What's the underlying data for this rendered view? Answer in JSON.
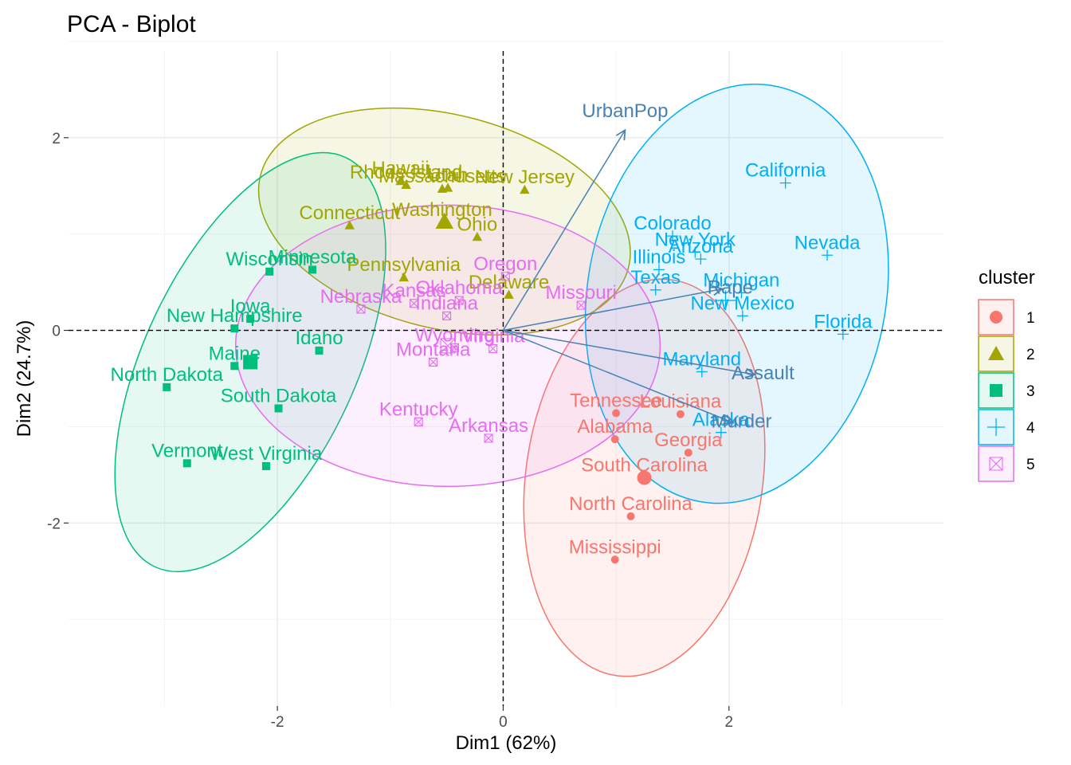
{
  "chart_data": {
    "type": "scatter",
    "title": "PCA - Biplot",
    "xlabel": "Dim1 (62%)",
    "ylabel": "Dim2 (24.7%)",
    "xlim": [
      -3.85,
      3.9
    ],
    "ylim": [
      -3.9,
      2.9
    ],
    "xticks": [
      -2,
      0,
      2
    ],
    "yticks": [
      -2,
      0,
      2
    ],
    "grid": true,
    "legend": {
      "title": "cluster",
      "position": "right"
    },
    "clusters": [
      {
        "id": "1",
        "color": "#F8766D",
        "shape": "circle",
        "centroid": [
          1.25,
          -1.53
        ],
        "ellipse": {
          "cx": 1.25,
          "cy": -1.53,
          "rx": 1.77,
          "ry": 1.23,
          "angle": 82
        },
        "points": [
          {
            "name": "Tennessee",
            "x": 1.0,
            "y": -0.86
          },
          {
            "name": "Louisiana",
            "x": 1.57,
            "y": -0.87
          },
          {
            "name": "Alabama",
            "x": 0.99,
            "y": -1.13
          },
          {
            "name": "Georgia",
            "x": 1.64,
            "y": -1.27
          },
          {
            "name": "South Carolina",
            "x": 1.25,
            "y": -1.53
          },
          {
            "name": "North Carolina",
            "x": 1.13,
            "y": -1.93
          },
          {
            "name": "Mississippi",
            "x": 0.99,
            "y": -2.38
          }
        ]
      },
      {
        "id": "2",
        "color": "#A3A500",
        "shape": "triangle",
        "centroid": [
          -0.52,
          1.13
        ],
        "ellipse": {
          "cx": -0.52,
          "cy": 1.13,
          "rx": 1.68,
          "ry": 1.11,
          "angle": -14
        },
        "points": [
          {
            "name": "Hawaii",
            "x": -0.91,
            "y": 1.55
          },
          {
            "name": "Rhode Island",
            "x": -0.86,
            "y": 1.51
          },
          {
            "name": "Massachusetts",
            "x": -0.54,
            "y": 1.47
          },
          {
            "name": "Utah",
            "x": -0.49,
            "y": 1.48
          },
          {
            "name": "New Jersey",
            "x": 0.19,
            "y": 1.46
          },
          {
            "name": "Connecticut",
            "x": -1.36,
            "y": 1.09
          },
          {
            "name": "Washington",
            "x": -0.54,
            "y": 1.12
          },
          {
            "name": "Ohio",
            "x": -0.23,
            "y": 0.97
          },
          {
            "name": "Pennsylvania",
            "x": -0.88,
            "y": 0.55
          },
          {
            "name": "Delaware",
            "x": 0.05,
            "y": 0.37
          }
        ]
      },
      {
        "id": "3",
        "color": "#00BF7D",
        "shape": "square",
        "centroid": [
          -2.24,
          -0.33
        ],
        "ellipse": {
          "cx": -2.24,
          "cy": -0.33,
          "rx": 2.0,
          "ry": 1.1,
          "angle": 65
        },
        "points": [
          {
            "name": "Wisconsin",
            "x": -2.07,
            "y": 0.61
          },
          {
            "name": "Minnesota",
            "x": -1.69,
            "y": 0.63
          },
          {
            "name": "Iowa",
            "x": -2.24,
            "y": 0.12
          },
          {
            "name": "New Hampshire",
            "x": -2.38,
            "y": 0.02
          },
          {
            "name": "Idaho",
            "x": -1.63,
            "y": -0.21
          },
          {
            "name": "Maine",
            "x": -2.38,
            "y": -0.37
          },
          {
            "name": "North Dakota",
            "x": -2.98,
            "y": -0.59
          },
          {
            "name": "South Dakota",
            "x": -1.99,
            "y": -0.81
          },
          {
            "name": "Vermont",
            "x": -2.8,
            "y": -1.38
          },
          {
            "name": "West Virginia",
            "x": -2.1,
            "y": -1.41
          }
        ]
      },
      {
        "id": "4",
        "color": "#00B0F6",
        "shape": "plus",
        "centroid": [
          1.97,
          0.31
        ],
        "ellipse": {
          "cx": 2.07,
          "cy": 0.38,
          "rx": 1.87,
          "ry": 1.55,
          "angle": 80
        },
        "points": [
          {
            "name": "California",
            "x": 2.5,
            "y": 1.53
          },
          {
            "name": "Colorado",
            "x": 1.5,
            "y": 0.98
          },
          {
            "name": "New York",
            "x": 1.7,
            "y": 0.81
          },
          {
            "name": "Arizona",
            "x": 1.75,
            "y": 0.74
          },
          {
            "name": "Illinois",
            "x": 1.38,
            "y": 0.63
          },
          {
            "name": "Nevada",
            "x": 2.87,
            "y": 0.78
          },
          {
            "name": "Texas",
            "x": 1.35,
            "y": 0.42
          },
          {
            "name": "Michigan",
            "x": 2.11,
            "y": 0.39
          },
          {
            "name": "New Mexico",
            "x": 2.12,
            "y": 0.15
          },
          {
            "name": "Florida",
            "x": 3.01,
            "y": -0.04
          },
          {
            "name": "Maryland",
            "x": 1.76,
            "y": -0.43
          },
          {
            "name": "Alaska",
            "x": 1.93,
            "y": -1.06
          }
        ]
      },
      {
        "id": "5",
        "color": "#E76BF3",
        "shape": "boxcross",
        "centroid": [
          -0.49,
          -0.16
        ],
        "ellipse": {
          "cx": -0.49,
          "cy": -0.16,
          "rx": 1.88,
          "ry": 1.46,
          "angle": 0
        },
        "points": [
          {
            "name": "Oregon",
            "x": 0.02,
            "y": 0.56
          },
          {
            "name": "Missouri",
            "x": 0.69,
            "y": 0.26
          },
          {
            "name": "Kansas",
            "x": -0.79,
            "y": 0.28
          },
          {
            "name": "Oklahoma",
            "x": -0.39,
            "y": 0.31
          },
          {
            "name": "Nebraska",
            "x": -1.26,
            "y": 0.22
          },
          {
            "name": "Indiana",
            "x": -0.5,
            "y": 0.15
          },
          {
            "name": "Virginia",
            "x": -0.09,
            "y": -0.19
          },
          {
            "name": "Wyoming",
            "x": -0.43,
            "y": -0.18
          },
          {
            "name": "Montana",
            "x": -0.62,
            "y": -0.33
          },
          {
            "name": "Kentucky",
            "x": -0.75,
            "y": -0.95
          },
          {
            "name": "Arkansas",
            "x": -0.13,
            "y": -1.12
          }
        ]
      }
    ],
    "variables": [
      {
        "name": "UrbanPop",
        "x": 1.08,
        "y": 2.08
      },
      {
        "name": "Rape",
        "x": 1.94,
        "y": 0.43
      },
      {
        "name": "Assault",
        "x": 2.23,
        "y": -0.46
      },
      {
        "name": "Murder",
        "x": 2.04,
        "y": -0.96
      }
    ]
  }
}
